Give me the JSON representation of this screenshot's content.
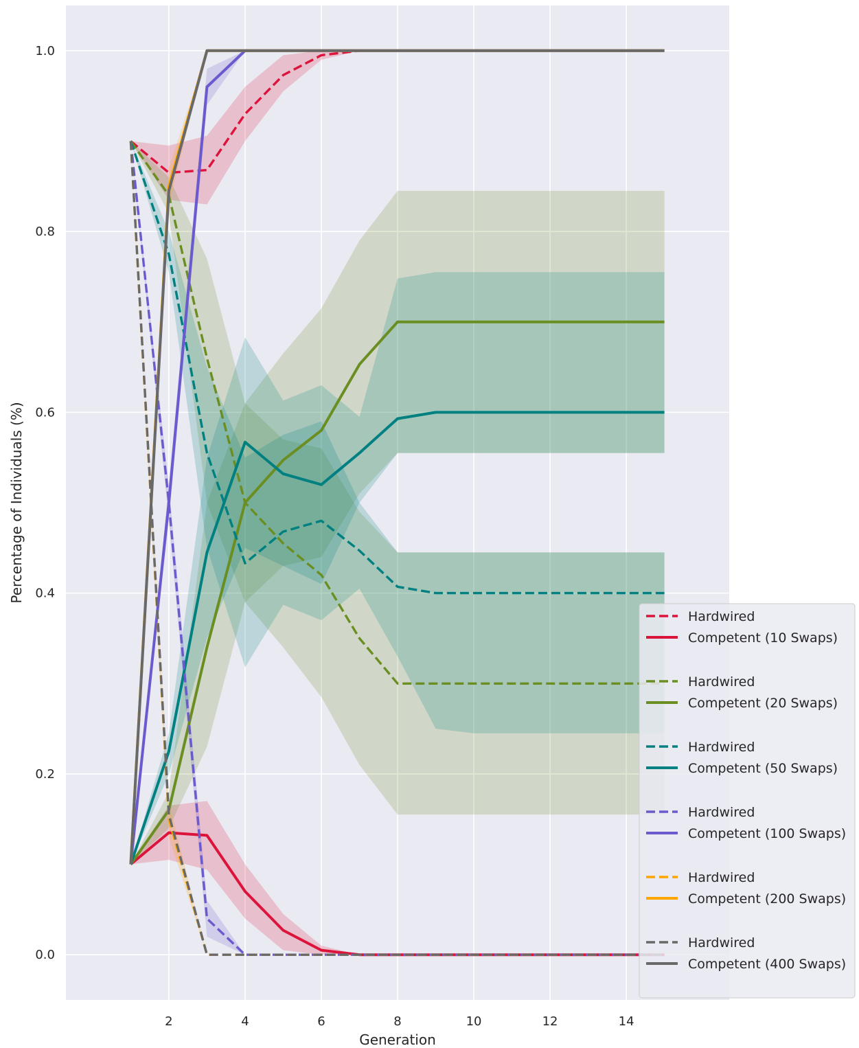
{
  "chart_data": {
    "type": "line",
    "title": "",
    "xlabel": "Generation",
    "ylabel": "Percentage of Individuals (%)",
    "xlim": [
      -0.7,
      16.7
    ],
    "ylim": [
      -0.05,
      1.05
    ],
    "xticks": [
      2,
      4,
      6,
      8,
      10,
      12,
      14
    ],
    "yticks": [
      0.0,
      0.2,
      0.4,
      0.6,
      0.8,
      1.0
    ],
    "xtick_labels": [
      "2",
      "4",
      "6",
      "8",
      "10",
      "12",
      "14"
    ],
    "ytick_labels": [
      "0.0",
      "0.2",
      "0.4",
      "0.6",
      "0.8",
      "1.0"
    ],
    "grid": true,
    "legend_position": "lower-right",
    "x": [
      1,
      2,
      3,
      4,
      5,
      6,
      7,
      8,
      9,
      10,
      11,
      12,
      13,
      14,
      15
    ],
    "groups": [
      {
        "color": "#dc143c",
        "hardwired": {
          "name": "Hardwired",
          "values": [
            0.9,
            0.865,
            0.868,
            0.93,
            0.973,
            0.995,
            1.0,
            1.0,
            1.0,
            1.0,
            1.0,
            1.0,
            1.0,
            1.0,
            1.0
          ],
          "lower": [
            0.9,
            0.835,
            0.83,
            0.9,
            0.955,
            0.99,
            1.0,
            1.0,
            1.0,
            1.0,
            1.0,
            1.0,
            1.0,
            1.0,
            1.0
          ],
          "upper": [
            0.9,
            0.895,
            0.906,
            0.96,
            0.995,
            1.0,
            1.0,
            1.0,
            1.0,
            1.0,
            1.0,
            1.0,
            1.0,
            1.0,
            1.0
          ]
        },
        "competent": {
          "name": "Competent (10 Swaps)",
          "values": [
            0.1,
            0.135,
            0.132,
            0.07,
            0.027,
            0.005,
            0.0,
            0.0,
            0.0,
            0.0,
            0.0,
            0.0,
            0.0,
            0.0,
            0.0
          ],
          "lower": [
            0.1,
            0.105,
            0.094,
            0.04,
            0.005,
            0.0,
            0.0,
            0.0,
            0.0,
            0.0,
            0.0,
            0.0,
            0.0,
            0.0,
            0.0
          ],
          "upper": [
            0.1,
            0.165,
            0.17,
            0.1,
            0.045,
            0.01,
            0.0,
            0.0,
            0.0,
            0.0,
            0.0,
            0.0,
            0.0,
            0.0,
            0.0
          ]
        }
      },
      {
        "color": "#6b8e23",
        "hardwired": {
          "name": "Hardwired",
          "values": [
            0.9,
            0.84,
            0.66,
            0.5,
            0.455,
            0.42,
            0.35,
            0.3,
            0.3,
            0.3,
            0.3,
            0.3,
            0.3,
            0.3,
            0.3
          ],
          "lower": [
            0.9,
            0.82,
            0.5,
            0.39,
            0.34,
            0.285,
            0.21,
            0.155,
            0.155,
            0.155,
            0.155,
            0.155,
            0.155,
            0.155,
            0.155
          ],
          "upper": [
            0.9,
            0.86,
            0.77,
            0.61,
            0.57,
            0.56,
            0.49,
            0.445,
            0.445,
            0.445,
            0.445,
            0.445,
            0.445,
            0.445,
            0.445
          ]
        },
        "competent": {
          "name": "Competent (20 Swaps)",
          "values": [
            0.1,
            0.16,
            0.34,
            0.5,
            0.547,
            0.58,
            0.653,
            0.7,
            0.7,
            0.7,
            0.7,
            0.7,
            0.7,
            0.7,
            0.7
          ],
          "lower": [
            0.1,
            0.14,
            0.23,
            0.39,
            0.43,
            0.44,
            0.51,
            0.555,
            0.555,
            0.555,
            0.555,
            0.555,
            0.555,
            0.555,
            0.555
          ],
          "upper": [
            0.1,
            0.18,
            0.5,
            0.61,
            0.665,
            0.715,
            0.79,
            0.845,
            0.845,
            0.845,
            0.845,
            0.845,
            0.845,
            0.845,
            0.845
          ]
        }
      },
      {
        "color": "#008080",
        "hardwired": {
          "name": "Hardwired",
          "values": [
            0.9,
            0.775,
            0.555,
            0.433,
            0.468,
            0.48,
            0.447,
            0.407,
            0.4,
            0.4,
            0.4,
            0.4,
            0.4,
            0.4,
            0.4
          ],
          "lower": [
            0.9,
            0.755,
            0.45,
            0.318,
            0.387,
            0.37,
            0.405,
            0.33,
            0.25,
            0.245,
            0.245,
            0.245,
            0.245,
            0.245,
            0.245
          ],
          "upper": [
            0.9,
            0.8,
            0.65,
            0.55,
            0.575,
            0.59,
            0.5,
            0.445,
            0.445,
            0.445,
            0.445,
            0.445,
            0.445,
            0.445,
            0.445
          ]
        },
        "competent": {
          "name": "Competent (50 Swaps)",
          "values": [
            0.1,
            0.225,
            0.445,
            0.567,
            0.532,
            0.52,
            0.555,
            0.593,
            0.6,
            0.6,
            0.6,
            0.6,
            0.6,
            0.6,
            0.6
          ],
          "lower": [
            0.1,
            0.2,
            0.35,
            0.45,
            0.43,
            0.41,
            0.5,
            0.555,
            0.555,
            0.555,
            0.555,
            0.555,
            0.555,
            0.555,
            0.555
          ],
          "upper": [
            0.1,
            0.245,
            0.55,
            0.683,
            0.613,
            0.63,
            0.595,
            0.748,
            0.755,
            0.755,
            0.755,
            0.755,
            0.755,
            0.755,
            0.755
          ]
        }
      },
      {
        "color": "#6a5acd",
        "hardwired": {
          "name": "Hardwired",
          "values": [
            0.9,
            0.5,
            0.04,
            0.0,
            0.0,
            0.0,
            0.0,
            0.0,
            0.0,
            0.0,
            0.0,
            0.0,
            0.0,
            0.0,
            0.0
          ],
          "lower": [
            0.9,
            0.48,
            0.02,
            0.0,
            0.0,
            0.0,
            0.0,
            0.0,
            0.0,
            0.0,
            0.0,
            0.0,
            0.0,
            0.0,
            0.0
          ],
          "upper": [
            0.9,
            0.52,
            0.06,
            0.0,
            0.0,
            0.0,
            0.0,
            0.0,
            0.0,
            0.0,
            0.0,
            0.0,
            0.0,
            0.0,
            0.0
          ]
        },
        "competent": {
          "name": "Competent (100 Swaps)",
          "values": [
            0.1,
            0.5,
            0.96,
            1.0,
            1.0,
            1.0,
            1.0,
            1.0,
            1.0,
            1.0,
            1.0,
            1.0,
            1.0,
            1.0,
            1.0
          ],
          "lower": [
            0.1,
            0.48,
            0.94,
            1.0,
            1.0,
            1.0,
            1.0,
            1.0,
            1.0,
            1.0,
            1.0,
            1.0,
            1.0,
            1.0,
            1.0
          ],
          "upper": [
            0.1,
            0.52,
            0.98,
            1.0,
            1.0,
            1.0,
            1.0,
            1.0,
            1.0,
            1.0,
            1.0,
            1.0,
            1.0,
            1.0,
            1.0
          ]
        }
      },
      {
        "color": "#ffa500",
        "hardwired": {
          "name": "Hardwired",
          "values": [
            0.9,
            0.15,
            0.0,
            0.0,
            0.0,
            0.0,
            0.0,
            0.0,
            0.0,
            0.0,
            0.0,
            0.0,
            0.0,
            0.0,
            0.0
          ],
          "lower": [
            0.9,
            0.13,
            0.0,
            0.0,
            0.0,
            0.0,
            0.0,
            0.0,
            0.0,
            0.0,
            0.0,
            0.0,
            0.0,
            0.0,
            0.0
          ],
          "upper": [
            0.9,
            0.17,
            0.0,
            0.0,
            0.0,
            0.0,
            0.0,
            0.0,
            0.0,
            0.0,
            0.0,
            0.0,
            0.0,
            0.0,
            0.0
          ]
        },
        "competent": {
          "name": "Competent (200 Swaps)",
          "values": [
            0.1,
            0.85,
            1.0,
            1.0,
            1.0,
            1.0,
            1.0,
            1.0,
            1.0,
            1.0,
            1.0,
            1.0,
            1.0,
            1.0,
            1.0
          ],
          "lower": [
            0.1,
            0.83,
            1.0,
            1.0,
            1.0,
            1.0,
            1.0,
            1.0,
            1.0,
            1.0,
            1.0,
            1.0,
            1.0,
            1.0,
            1.0
          ],
          "upper": [
            0.1,
            0.87,
            1.0,
            1.0,
            1.0,
            1.0,
            1.0,
            1.0,
            1.0,
            1.0,
            1.0,
            1.0,
            1.0,
            1.0,
            1.0
          ]
        }
      },
      {
        "color": "#696969",
        "hardwired": {
          "name": "Hardwired",
          "values": [
            0.9,
            0.155,
            0.0,
            0.0,
            0.0,
            0.0,
            0.0,
            0.0,
            0.0,
            0.0,
            0.0,
            0.0,
            0.0,
            0.0,
            0.0
          ],
          "lower": [
            0.9,
            0.155,
            0.0,
            0.0,
            0.0,
            0.0,
            0.0,
            0.0,
            0.0,
            0.0,
            0.0,
            0.0,
            0.0,
            0.0,
            0.0
          ],
          "upper": [
            0.9,
            0.155,
            0.0,
            0.0,
            0.0,
            0.0,
            0.0,
            0.0,
            0.0,
            0.0,
            0.0,
            0.0,
            0.0,
            0.0,
            0.0
          ]
        },
        "competent": {
          "name": "Competent (400 Swaps)",
          "values": [
            0.1,
            0.845,
            1.0,
            1.0,
            1.0,
            1.0,
            1.0,
            1.0,
            1.0,
            1.0,
            1.0,
            1.0,
            1.0,
            1.0,
            1.0
          ],
          "lower": [
            0.1,
            0.845,
            1.0,
            1.0,
            1.0,
            1.0,
            1.0,
            1.0,
            1.0,
            1.0,
            1.0,
            1.0,
            1.0,
            1.0,
            1.0
          ],
          "upper": [
            0.1,
            0.845,
            1.0,
            1.0,
            1.0,
            1.0,
            1.0,
            1.0,
            1.0,
            1.0,
            1.0,
            1.0,
            1.0,
            1.0,
            1.0
          ]
        }
      }
    ],
    "colors": {
      "plot_background": "#eaeaf2",
      "grid": "#ffffff",
      "legend_background": "#eaeaf2",
      "legend_border": "#cccccc"
    }
  }
}
